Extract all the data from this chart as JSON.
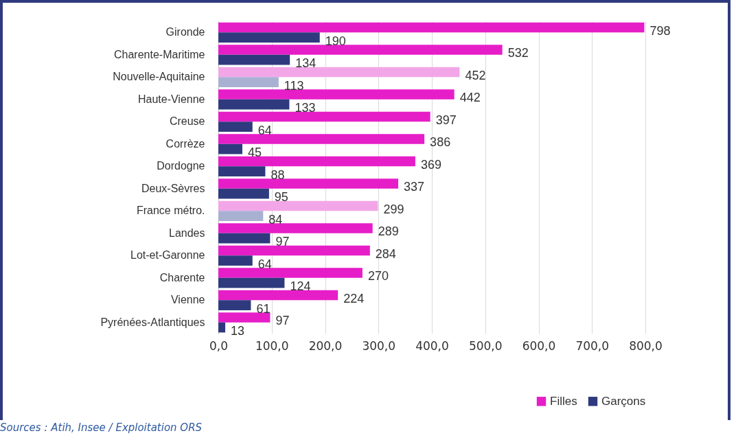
{
  "chart_data": {
    "type": "bar",
    "orientation": "horizontal",
    "categories": [
      "Gironde",
      "Charente-Maritime",
      "Nouvelle-Aquitaine",
      "Haute-Vienne",
      "Creuse",
      "Corrèze",
      "Dordogne",
      "Deux-Sèvres",
      "France métro.",
      "Landes",
      "Lot-et-Garonne",
      "Charente",
      "Vienne",
      "Pyrénées-Atlantiques"
    ],
    "series": [
      {
        "name": "Filles",
        "color": "#e61ec8",
        "colors": [
          "#e61ec8",
          "#e61ec8",
          "#f2a6e8",
          "#e61ec8",
          "#e61ec8",
          "#e61ec8",
          "#e61ec8",
          "#e61ec8",
          "#f2a6e8",
          "#e61ec8",
          "#e61ec8",
          "#e61ec8",
          "#e61ec8",
          "#e61ec8"
        ],
        "values": [
          798,
          532,
          452,
          442,
          397,
          386,
          369,
          337,
          299,
          289,
          284,
          270,
          224,
          97
        ]
      },
      {
        "name": "Garçons",
        "color": "#2f3a7e",
        "colors": [
          "#2f3a7e",
          "#2f3a7e",
          "#a9b1d3",
          "#2f3a7e",
          "#2f3a7e",
          "#2f3a7e",
          "#2f3a7e",
          "#2f3a7e",
          "#a9b1d3",
          "#2f3a7e",
          "#2f3a7e",
          "#2f3a7e",
          "#2f3a7e",
          "#2f3a7e"
        ],
        "values": [
          190,
          134,
          113,
          133,
          64,
          45,
          88,
          95,
          84,
          97,
          64,
          124,
          61,
          13
        ]
      }
    ],
    "xlim": [
      0,
      800
    ],
    "xticks": [
      {
        "value": 0,
        "label": "0,0"
      },
      {
        "value": 100,
        "label": "100,0"
      },
      {
        "value": 200,
        "label": "200,0"
      },
      {
        "value": 300,
        "label": "300,0"
      },
      {
        "value": 400,
        "label": "400,0"
      },
      {
        "value": 500,
        "label": "500,0"
      },
      {
        "value": 600,
        "label": "600,0"
      },
      {
        "value": 700,
        "label": "700,0"
      },
      {
        "value": 800,
        "label": "800,0"
      }
    ],
    "grid": "x",
    "data_labels": true,
    "legend": "bottom right",
    "annotations": [
      "Sources : Atih, Insee / Exploitation ORS"
    ]
  }
}
